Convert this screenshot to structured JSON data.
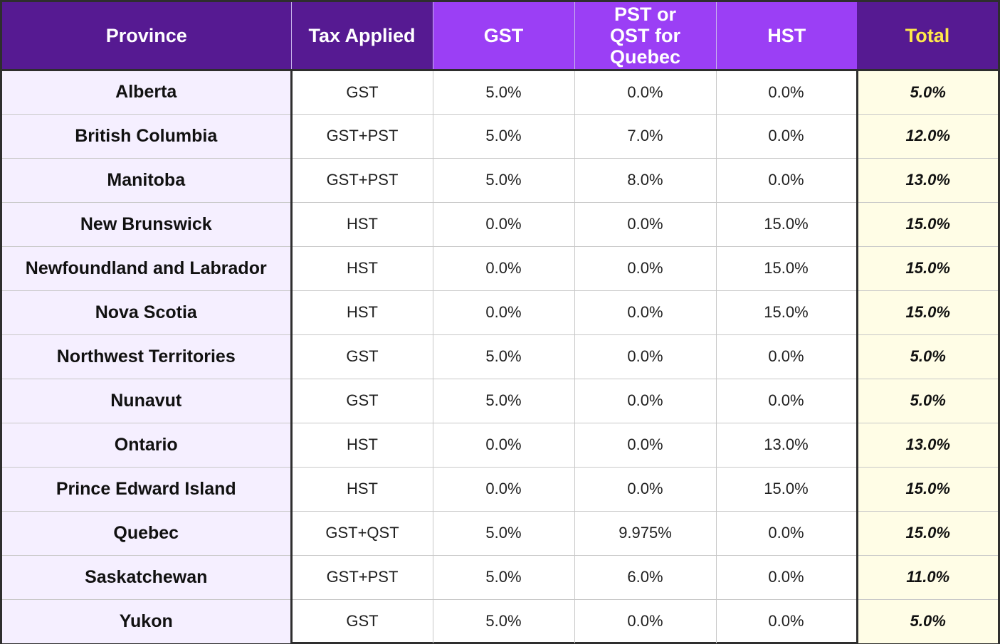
{
  "colors": {
    "header_dark": "#561a92",
    "header_light": "#9b3ff5",
    "header_text": "#ffffff",
    "total_header_text": "#ffe94a",
    "province_bg": "#f5efff",
    "total_bg": "#fffde6",
    "border": "#2e2e2e"
  },
  "chart_data": {
    "type": "table",
    "columns": [
      "Province",
      "Tax Applied",
      "GST",
      "PST or QST for Quebec",
      "HST",
      "Total"
    ],
    "rows": [
      [
        "Alberta",
        "GST",
        "5.0%",
        "0.0%",
        "0.0%",
        "5.0%"
      ],
      [
        "British Columbia",
        "GST+PST",
        "5.0%",
        "7.0%",
        "0.0%",
        "12.0%"
      ],
      [
        "Manitoba",
        "GST+PST",
        "5.0%",
        "8.0%",
        "0.0%",
        "13.0%"
      ],
      [
        "New Brunswick",
        "HST",
        "0.0%",
        "0.0%",
        "15.0%",
        "15.0%"
      ],
      [
        "Newfoundland and Labrador",
        "HST",
        "0.0%",
        "0.0%",
        "15.0%",
        "15.0%"
      ],
      [
        "Nova Scotia",
        "HST",
        "0.0%",
        "0.0%",
        "15.0%",
        "15.0%"
      ],
      [
        "Northwest Territories",
        "GST",
        "5.0%",
        "0.0%",
        "0.0%",
        "5.0%"
      ],
      [
        "Nunavut",
        "GST",
        "5.0%",
        "0.0%",
        "0.0%",
        "5.0%"
      ],
      [
        "Ontario",
        "HST",
        "0.0%",
        "0.0%",
        "13.0%",
        "13.0%"
      ],
      [
        "Prince Edward Island",
        "HST",
        "0.0%",
        "0.0%",
        "15.0%",
        "15.0%"
      ],
      [
        "Quebec",
        "GST+QST",
        "5.0%",
        "9.975%",
        "0.0%",
        "15.0%"
      ],
      [
        "Saskatchewan",
        "GST+PST",
        "5.0%",
        "6.0%",
        "0.0%",
        "11.0%"
      ],
      [
        "Yukon",
        "GST",
        "5.0%",
        "0.0%",
        "0.0%",
        "5.0%"
      ]
    ]
  }
}
